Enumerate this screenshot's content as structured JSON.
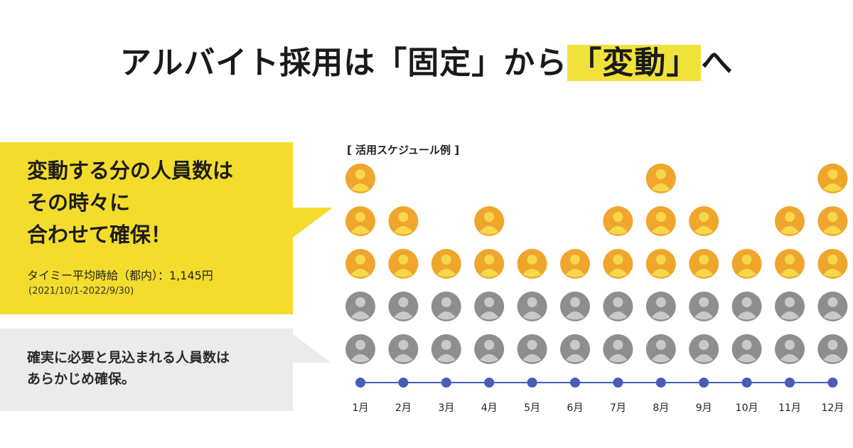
{
  "title": {
    "part1": "アルバイト採用は「固定」から",
    "highlight": "「変動」",
    "part2": "へ"
  },
  "yellow_bubble": {
    "lines": [
      "変動する分の人員数は",
      "その時々に",
      "合わせて確保！"
    ],
    "wage": "タイミー平均時給（都内）：1,145円",
    "period": "(2021/10/1-2022/9/30)"
  },
  "gray_bubble": {
    "lines": [
      "確実に必要と見込まれる人員数は",
      "あらかじめ確保。"
    ]
  },
  "schedule_label": "[ 活用スケジュール例 ]",
  "colors": {
    "variable_person": "#f0a52c",
    "fixed_person": "#8e8e8e",
    "timeline": "#4a5cb5",
    "highlight": "#f1e13d",
    "yellow_bubble": "#f3dc2c",
    "gray_bubble": "#ebebeb"
  },
  "chart_data": {
    "type": "bar",
    "categories": [
      "1月",
      "2月",
      "3月",
      "4月",
      "5月",
      "6月",
      "7月",
      "8月",
      "9月",
      "10月",
      "11月",
      "12月"
    ],
    "series": [
      {
        "values": [
          2,
          2,
          2,
          2,
          2,
          2,
          2,
          2,
          2,
          2,
          2,
          2
        ]
      },
      {
        "values": [
          3,
          2,
          1,
          2,
          1,
          1,
          2,
          3,
          2,
          1,
          2,
          3
        ]
      }
    ]
  }
}
